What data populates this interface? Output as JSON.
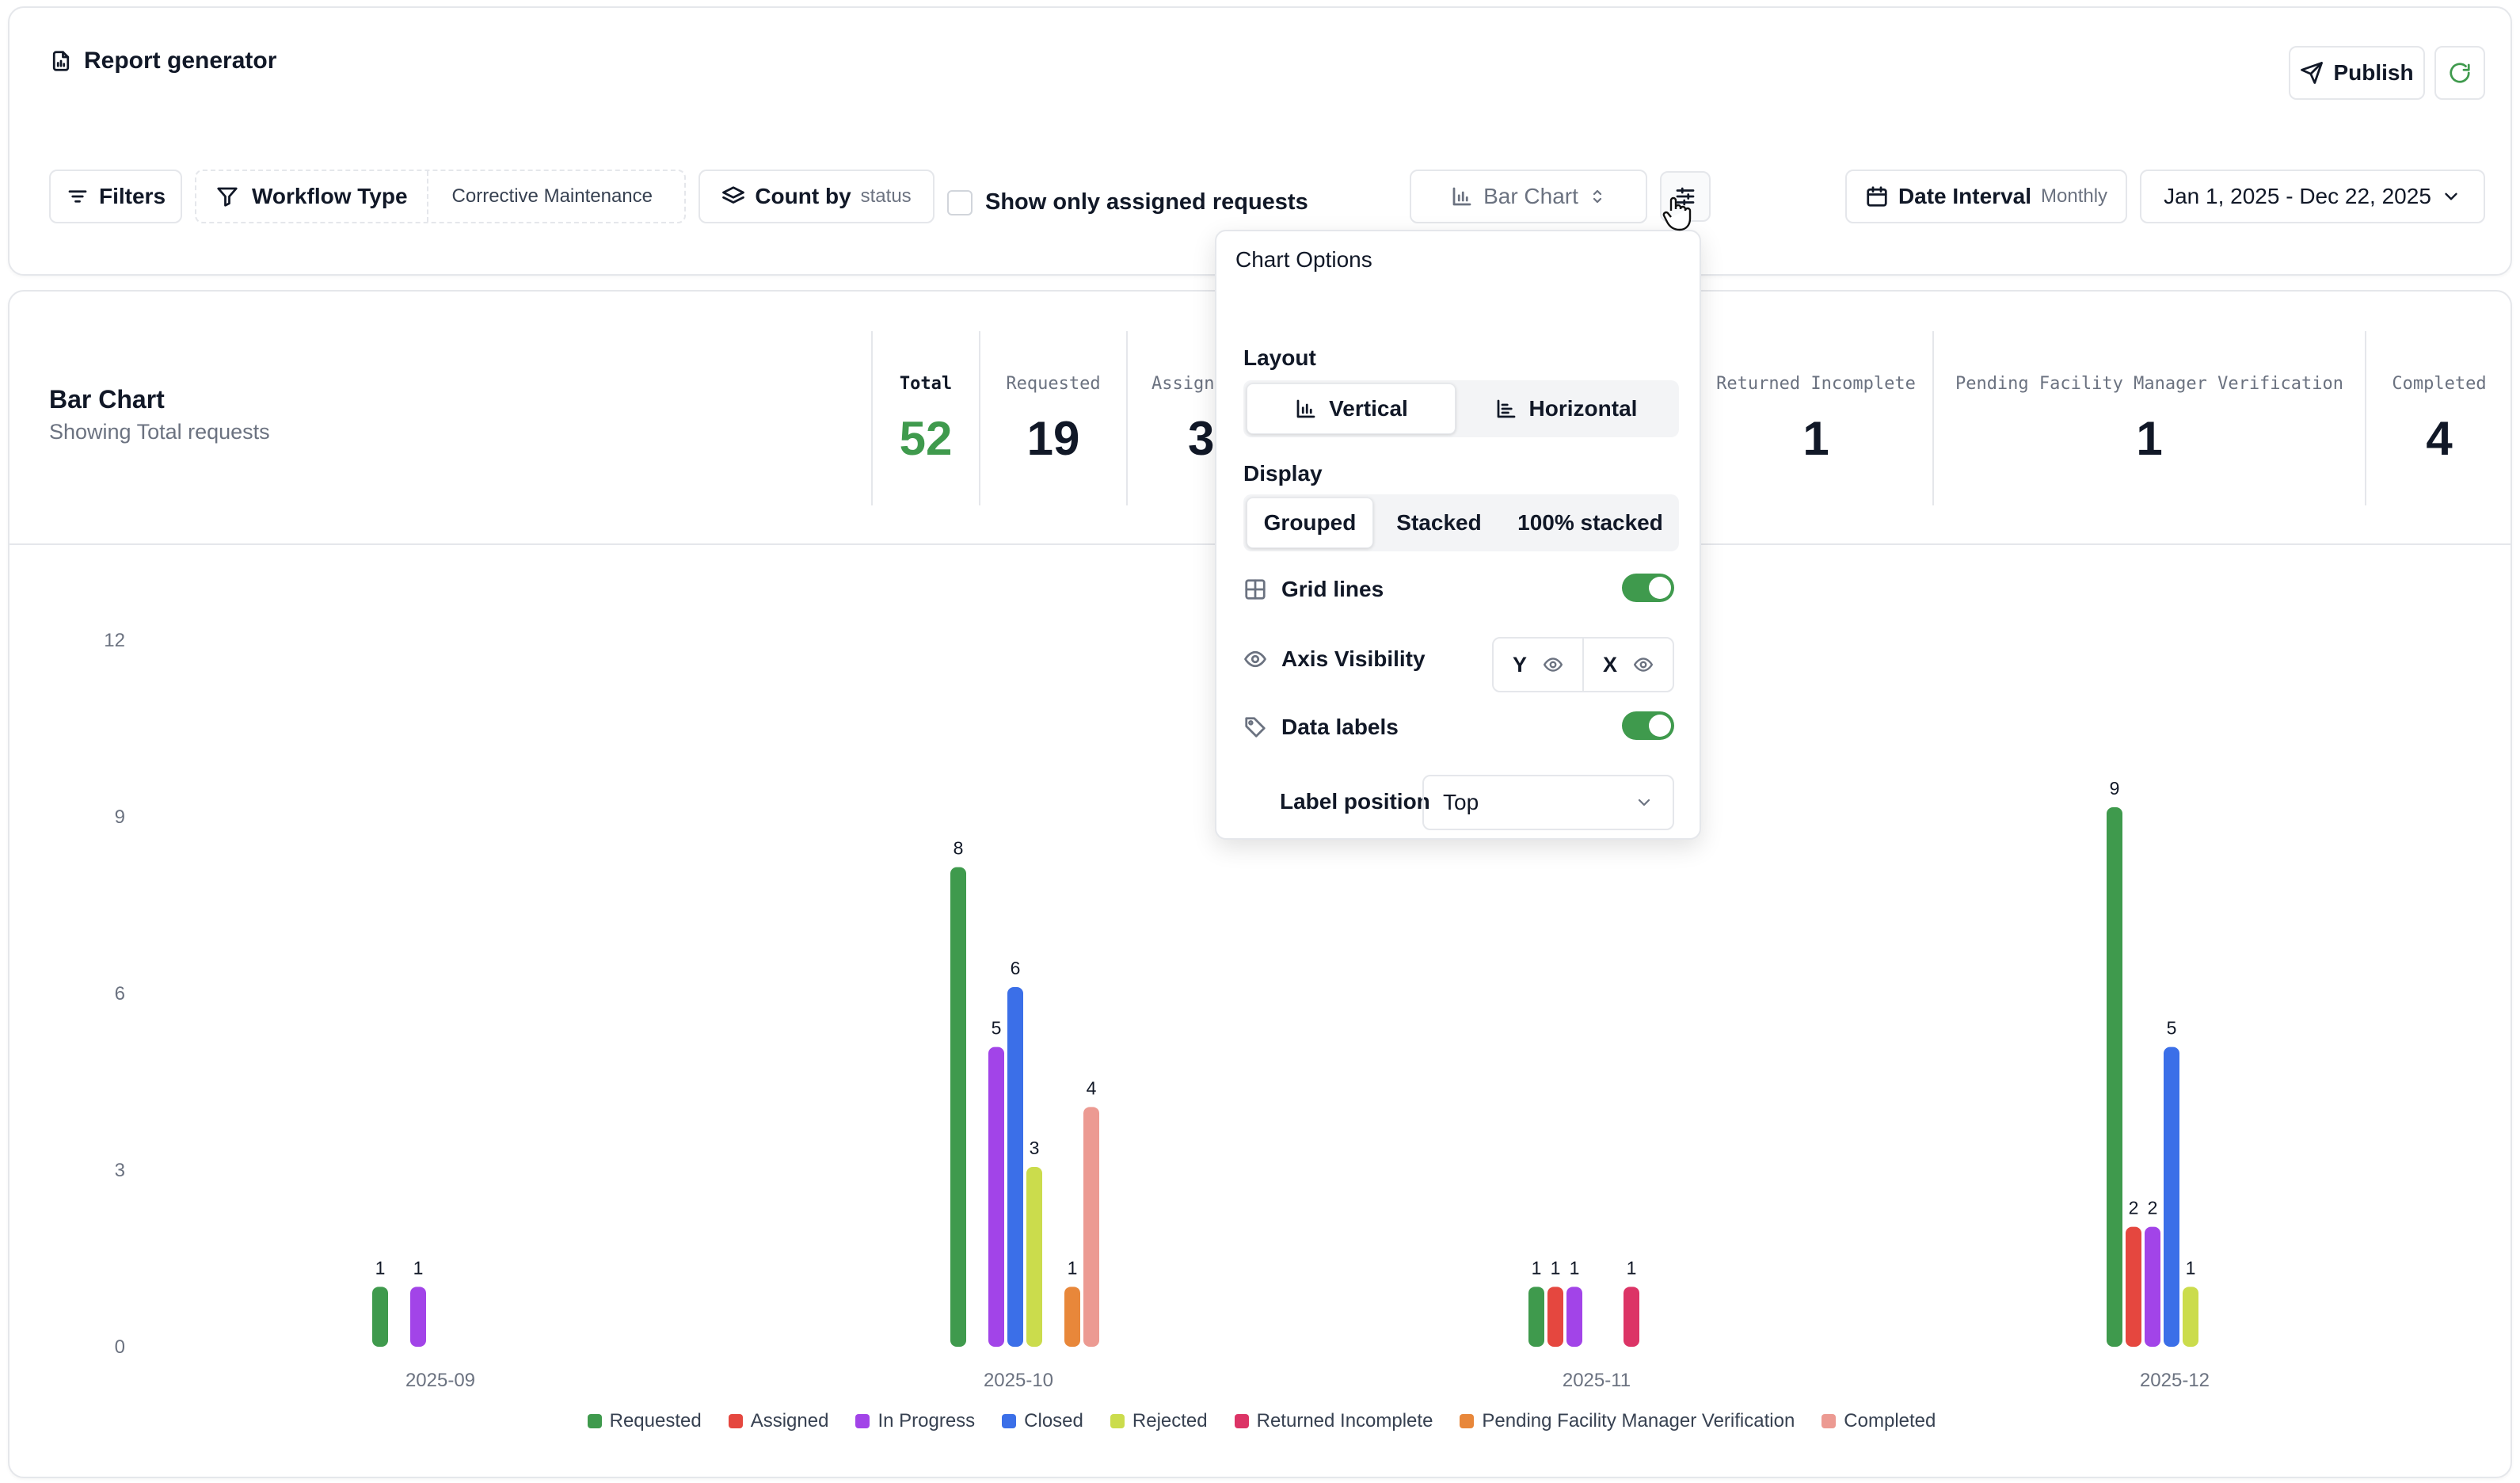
{
  "header": {
    "title": "Report generator",
    "publish_label": "Publish"
  },
  "toolbar": {
    "filters_label": "Filters",
    "workflow_type_label": "Workflow Type",
    "workflow_type_value": "Corrective Maintenance",
    "count_by_label": "Count by",
    "count_by_value": "status",
    "assigned_only_label": "Show only assigned requests",
    "assigned_only_checked": false,
    "chart_type_value": "Bar Chart",
    "date_interval_label": "Date Interval",
    "date_interval_value": "Monthly",
    "date_range_value": "Jan 1, 2025 - Dec 22, 2025"
  },
  "panel": {
    "title": "Bar Chart",
    "subtitle": "Showing Total requests",
    "stats": [
      {
        "label": "Total",
        "value": "52"
      },
      {
        "label": "Requested",
        "value": "19"
      },
      {
        "label": "Assigne",
        "value": "3"
      },
      {
        "label": "Returned Incomplete",
        "value": "1"
      },
      {
        "label": "Pending Facility Manager Verification",
        "value": "1"
      },
      {
        "label": "Completed",
        "value": "4"
      }
    ]
  },
  "chart_options": {
    "title": "Chart Options",
    "layout_label": "Layout",
    "layout_options": [
      "Vertical",
      "Horizontal"
    ],
    "layout_selected": "Vertical",
    "display_label": "Display",
    "display_options": [
      "Grouped",
      "Stacked",
      "100% stacked"
    ],
    "display_selected": "Grouped",
    "grid_lines_label": "Grid lines",
    "grid_lines_on": true,
    "axis_visibility_label": "Axis Visibility",
    "axis_y": "Y",
    "axis_x": "X",
    "data_labels_label": "Data labels",
    "data_labels_on": true,
    "label_position_label": "Label position",
    "label_position_value": "Top"
  },
  "colors": {
    "Requested": "#3f9a4d",
    "Assigned": "#e5473f",
    "In Progress": "#a244e8",
    "Closed": "#3b6fe8",
    "Rejected": "#cbdc4c",
    "Returned Incomplete": "#dc3466",
    "Pending Facility Manager Verification": "#e8873a",
    "Completed": "#ec9a92"
  },
  "chart_data": {
    "type": "bar",
    "display": "grouped",
    "categories": [
      "2025-09",
      "2025-10",
      "2025-11",
      "2025-12"
    ],
    "y_ticks": [
      0,
      3,
      6,
      9,
      12
    ],
    "ylim": [
      0,
      12
    ],
    "grid": true,
    "legend_position": "bottom",
    "data_labels": true,
    "series": [
      {
        "name": "Requested",
        "values": [
          1,
          8,
          1,
          9
        ]
      },
      {
        "name": "Assigned",
        "values": [
          0,
          0,
          1,
          2
        ]
      },
      {
        "name": "In Progress",
        "values": [
          1,
          5,
          1,
          2
        ]
      },
      {
        "name": "Closed",
        "values": [
          0,
          6,
          0,
          5
        ]
      },
      {
        "name": "Rejected",
        "values": [
          0,
          3,
          0,
          1
        ]
      },
      {
        "name": "Returned Incomplete",
        "values": [
          0,
          0,
          1,
          0
        ]
      },
      {
        "name": "Pending Facility Manager Verification",
        "values": [
          0,
          1,
          0,
          0
        ]
      },
      {
        "name": "Completed",
        "values": [
          0,
          4,
          0,
          0
        ]
      }
    ]
  }
}
